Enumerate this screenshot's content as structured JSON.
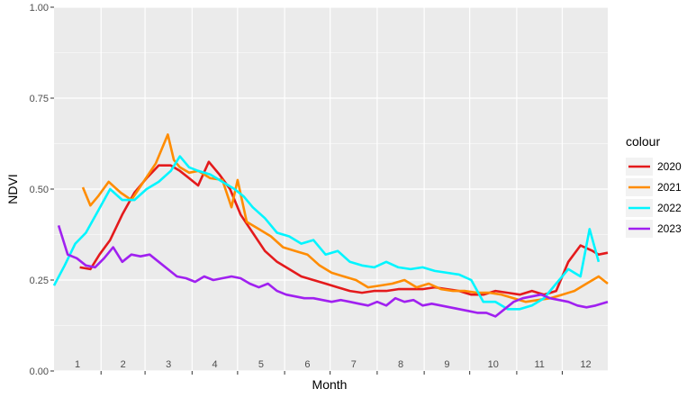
{
  "chart_data": {
    "type": "line",
    "xlabel": "Month",
    "ylabel": "NDVI",
    "ylim": [
      0,
      1
    ],
    "xlim": [
      1,
      366
    ],
    "y_ticks": [
      "0.00",
      "0.25",
      "0.50",
      "0.75",
      "1.00"
    ],
    "y_tick_values": [
      0,
      0.25,
      0.5,
      0.75,
      1.0
    ],
    "month_labels": [
      "1",
      "2",
      "3",
      "4",
      "5",
      "6",
      "7",
      "8",
      "9",
      "10",
      "11",
      "12"
    ],
    "legend_title": "colour",
    "legend_position": "right",
    "grid": true,
    "series": [
      {
        "name": "2020",
        "color": "#e41a1c",
        "x": [
          18,
          25,
          31,
          38,
          46,
          54,
          62,
          70,
          78,
          84,
          90,
          96,
          103,
          110,
          117,
          124,
          132,
          140,
          148,
          156,
          164,
          172,
          180,
          188,
          196,
          204,
          212,
          220,
          228,
          236,
          244,
          252,
          260,
          268,
          276,
          284,
          292,
          300,
          308,
          316,
          324,
          332,
          340,
          348,
          356,
          360,
          366
        ],
        "y": [
          0.285,
          0.28,
          0.32,
          0.36,
          0.43,
          0.49,
          0.53,
          0.565,
          0.565,
          0.55,
          0.53,
          0.51,
          0.575,
          0.54,
          0.5,
          0.43,
          0.38,
          0.33,
          0.3,
          0.28,
          0.26,
          0.25,
          0.24,
          0.23,
          0.22,
          0.215,
          0.22,
          0.22,
          0.225,
          0.225,
          0.225,
          0.23,
          0.225,
          0.22,
          0.21,
          0.21,
          0.22,
          0.215,
          0.21,
          0.22,
          0.21,
          0.22,
          0.3,
          0.345,
          0.33,
          0.32,
          0.325
        ]
      },
      {
        "name": "2021",
        "color": "#ff8c00",
        "x": [
          20,
          25,
          30,
          37,
          45,
          52,
          60,
          68,
          76,
          80,
          84,
          90,
          96,
          104,
          112,
          118,
          122,
          128,
          136,
          144,
          152,
          160,
          168,
          176,
          184,
          192,
          200,
          208,
          216,
          224,
          232,
          240,
          248,
          256,
          264,
          272,
          280,
          288,
          296,
          304,
          312,
          320,
          328,
          336,
          344,
          352,
          360,
          366
        ],
        "y": [
          0.505,
          0.455,
          0.48,
          0.52,
          0.49,
          0.47,
          0.52,
          0.57,
          0.65,
          0.58,
          0.56,
          0.545,
          0.55,
          0.53,
          0.525,
          0.45,
          0.525,
          0.41,
          0.39,
          0.37,
          0.34,
          0.33,
          0.32,
          0.29,
          0.27,
          0.26,
          0.25,
          0.23,
          0.235,
          0.24,
          0.25,
          0.23,
          0.24,
          0.225,
          0.22,
          0.22,
          0.215,
          0.215,
          0.21,
          0.2,
          0.19,
          0.195,
          0.2,
          0.21,
          0.22,
          0.24,
          0.26,
          0.24
        ]
      },
      {
        "name": "2022",
        "color": "#00f5ff",
        "x": [
          1,
          8,
          15,
          22,
          30,
          38,
          46,
          54,
          62,
          70,
          78,
          84,
          90,
          96,
          104,
          112,
          120,
          126,
          132,
          140,
          148,
          156,
          164,
          172,
          180,
          188,
          196,
          204,
          212,
          220,
          228,
          236,
          244,
          252,
          260,
          268,
          276,
          284,
          292,
          300,
          308,
          316,
          324,
          332,
          340,
          348,
          354,
          360
        ],
        "y": [
          0.235,
          0.29,
          0.35,
          0.38,
          0.44,
          0.5,
          0.47,
          0.47,
          0.5,
          0.52,
          0.55,
          0.59,
          0.56,
          0.55,
          0.54,
          0.52,
          0.5,
          0.48,
          0.45,
          0.42,
          0.38,
          0.37,
          0.35,
          0.36,
          0.32,
          0.33,
          0.3,
          0.29,
          0.285,
          0.3,
          0.285,
          0.28,
          0.285,
          0.275,
          0.27,
          0.265,
          0.25,
          0.19,
          0.19,
          0.17,
          0.17,
          0.18,
          0.2,
          0.24,
          0.28,
          0.26,
          0.39,
          0.3
        ]
      },
      {
        "name": "2023",
        "color": "#a020f0",
        "x": [
          4,
          10,
          16,
          22,
          28,
          34,
          40,
          46,
          52,
          58,
          64,
          70,
          76,
          82,
          88,
          94,
          100,
          106,
          112,
          118,
          124,
          130,
          136,
          142,
          148,
          154,
          160,
          166,
          172,
          178,
          184,
          190,
          196,
          202,
          208,
          214,
          220,
          226,
          232,
          238,
          244,
          250,
          256,
          262,
          268,
          274,
          280,
          286,
          292,
          298,
          304,
          310,
          316,
          322,
          328,
          334,
          340,
          346,
          352,
          358,
          366
        ],
        "y": [
          0.4,
          0.32,
          0.31,
          0.29,
          0.285,
          0.31,
          0.34,
          0.3,
          0.32,
          0.315,
          0.32,
          0.3,
          0.28,
          0.26,
          0.255,
          0.245,
          0.26,
          0.25,
          0.255,
          0.26,
          0.255,
          0.24,
          0.23,
          0.24,
          0.22,
          0.21,
          0.205,
          0.2,
          0.2,
          0.195,
          0.19,
          0.195,
          0.19,
          0.185,
          0.18,
          0.19,
          0.18,
          0.2,
          0.19,
          0.195,
          0.18,
          0.185,
          0.18,
          0.175,
          0.17,
          0.165,
          0.16,
          0.16,
          0.15,
          0.17,
          0.19,
          0.2,
          0.205,
          0.21,
          0.2,
          0.195,
          0.19,
          0.18,
          0.175,
          0.18,
          0.19
        ]
      }
    ]
  }
}
